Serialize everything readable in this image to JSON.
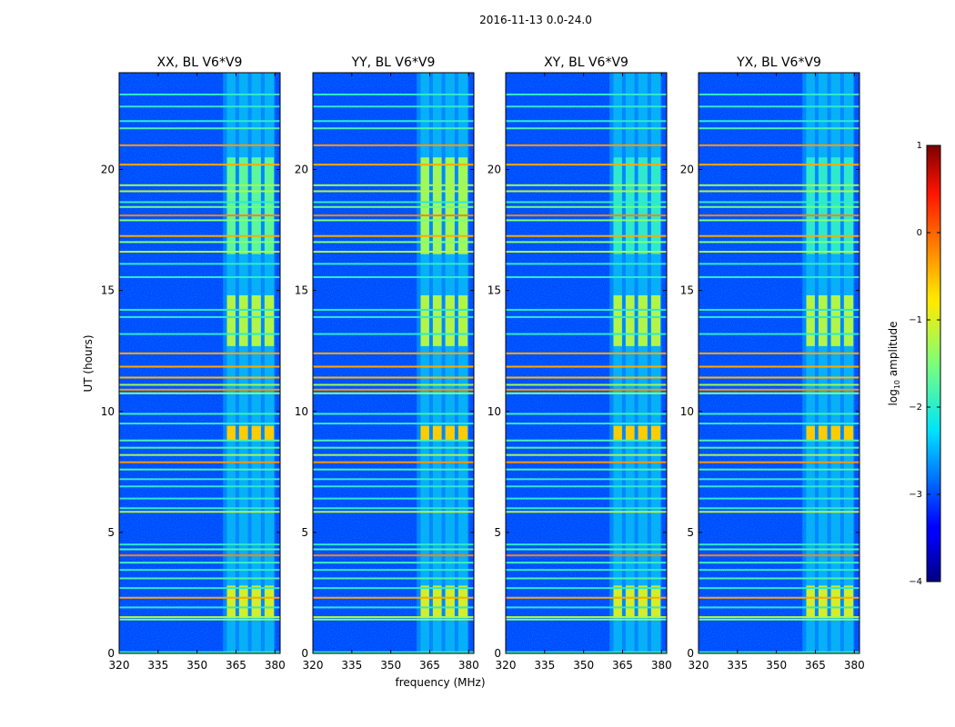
{
  "figure_title": "2016-11-13 0.0-24.0",
  "chart_data": {
    "type": "heatmap",
    "title": "2016-11-13 0.0-24.0",
    "xlabel": "frequency (MHz)",
    "ylabel": "UT (hours)",
    "xlim": [
      320,
      382
    ],
    "ylim": [
      0,
      24
    ],
    "xticks": [
      320,
      335,
      350,
      365,
      380
    ],
    "yticks": [
      0,
      5,
      10,
      15,
      20
    ],
    "colorscale": "jet",
    "colorbar": {
      "label": "log10 amplitude",
      "label_main": "log",
      "label_sub": "10",
      "label_tail": " amplitude",
      "range": [
        -4,
        1
      ],
      "ticks": [
        1,
        0,
        -1,
        -2,
        -3,
        -4
      ],
      "tick_labels": [
        "1",
        "0",
        "−1",
        "−2",
        "−3",
        "−4"
      ]
    },
    "panels": [
      {
        "title": "XX, BL V6*V9",
        "pol": "XX"
      },
      {
        "title": "YY, BL V6*V9",
        "pol": "YY"
      },
      {
        "title": "XY, BL V6*V9",
        "pol": "XY"
      },
      {
        "title": "YX, BL V6*V9",
        "pol": "YX"
      }
    ],
    "background_level": -3.1,
    "signal_band_mhz": [
      360,
      380
    ],
    "signal_channels_mhz": [
      [
        361.5,
        364.8
      ],
      [
        366.2,
        369.6
      ],
      [
        371.0,
        374.6
      ],
      [
        376.0,
        379.6
      ]
    ],
    "rfi_bright_lines": [
      {
        "t": 23.1,
        "level": -2.0
      },
      {
        "t": 22.6,
        "level": -2.0
      },
      {
        "t": 22.0,
        "level": -2.0
      },
      {
        "t": 21.7,
        "level": -1.8
      },
      {
        "t": 21.0,
        "level": -0.3
      },
      {
        "t": 20.2,
        "level": -0.4
      },
      {
        "t": 19.35,
        "level": -1.3
      },
      {
        "t": 19.1,
        "level": -1.2
      },
      {
        "t": 18.65,
        "level": -2.0
      },
      {
        "t": 18.45,
        "level": -1.6
      },
      {
        "t": 18.1,
        "level": -0.2
      },
      {
        "t": 17.9,
        "level": -1.5
      },
      {
        "t": 17.25,
        "level": -0.4
      },
      {
        "t": 17.0,
        "level": -1.5
      },
      {
        "t": 16.6,
        "level": -1.2
      },
      {
        "t": 16.1,
        "level": -2.0
      },
      {
        "t": 15.55,
        "level": -2.0
      },
      {
        "t": 14.2,
        "level": -2.0
      },
      {
        "t": 13.9,
        "level": -2.0
      },
      {
        "t": 13.2,
        "level": -2.0
      },
      {
        "t": 12.4,
        "level": -0.4
      },
      {
        "t": 11.85,
        "level": -0.4
      },
      {
        "t": 11.4,
        "level": -0.5
      },
      {
        "t": 11.1,
        "level": -1.3
      },
      {
        "t": 10.9,
        "level": -0.3
      },
      {
        "t": 10.75,
        "level": -1.5
      },
      {
        "t": 9.9,
        "level": -1.9
      },
      {
        "t": 9.5,
        "level": -2.0
      },
      {
        "t": 8.8,
        "level": -1.8
      },
      {
        "t": 8.5,
        "level": -1.8
      },
      {
        "t": 8.2,
        "level": -1.3
      },
      {
        "t": 7.9,
        "level": -0.3
      },
      {
        "t": 7.6,
        "level": -1.8
      },
      {
        "t": 7.2,
        "level": -2.0
      },
      {
        "t": 6.9,
        "level": -2.0
      },
      {
        "t": 6.4,
        "level": -2.0
      },
      {
        "t": 6.0,
        "level": -2.0
      },
      {
        "t": 5.85,
        "level": -1.2
      },
      {
        "t": 4.5,
        "level": -2.0
      },
      {
        "t": 4.3,
        "level": -1.8
      },
      {
        "t": 4.05,
        "level": -0.2
      },
      {
        "t": 3.75,
        "level": -1.9
      },
      {
        "t": 3.45,
        "level": -2.0
      },
      {
        "t": 3.1,
        "level": -1.8
      },
      {
        "t": 2.7,
        "level": -2.0
      },
      {
        "t": 2.3,
        "level": -0.4
      },
      {
        "t": 1.9,
        "level": -2.0
      },
      {
        "t": 1.5,
        "level": -1.2
      },
      {
        "t": 1.4,
        "level": -1.5
      },
      {
        "t": 0.05,
        "level": -2.0
      }
    ],
    "signal_bursts": [
      {
        "t0": 1.5,
        "t1": 2.8,
        "level": -1.0
      },
      {
        "t0": 8.8,
        "t1": 9.4,
        "level": -0.6
      },
      {
        "t0": 12.7,
        "t1": 14.8,
        "level": -1.2
      },
      {
        "t0": 16.5,
        "t1": 20.5,
        "level": -1.7
      }
    ]
  }
}
